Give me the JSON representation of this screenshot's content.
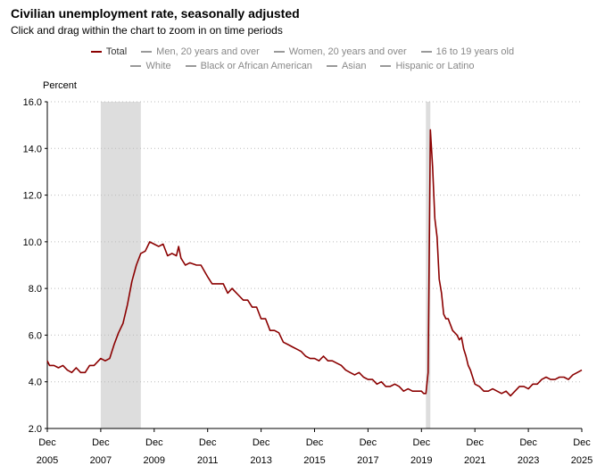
{
  "header": {
    "title": "Civilian unemployment rate, seasonally adjusted",
    "subtitle": "Click and drag within the chart to zoom in on time periods"
  },
  "legend": {
    "rows": [
      [
        {
          "label": "Total",
          "active": true
        },
        {
          "label": "Men, 20 years and over",
          "active": false
        },
        {
          "label": "Women, 20 years and over",
          "active": false
        },
        {
          "label": "16 to 19 years old",
          "active": false
        }
      ],
      [
        {
          "label": "White",
          "active": false
        },
        {
          "label": "Black or African American",
          "active": false
        },
        {
          "label": "Asian",
          "active": false
        },
        {
          "label": "Hispanic or Latino",
          "active": false
        }
      ]
    ]
  },
  "colors": {
    "series": "#8b0000",
    "recession": "#dddddd",
    "grid": "#cccccc",
    "legend_inactive": "#999999"
  },
  "chart_data": {
    "type": "line",
    "title": "Civilian unemployment rate, seasonally adjusted",
    "ylabel": "Percent",
    "ylim": [
      2.0,
      16.0
    ],
    "yticks": [
      "16.0",
      "14.0",
      "12.0",
      "10.0",
      "8.0",
      "6.0",
      "4.0",
      "2.0"
    ],
    "yticks_values": [
      16,
      14,
      12,
      10,
      8,
      6,
      4,
      2
    ],
    "xlim": [
      2005.917,
      2025.917
    ],
    "xticks": [
      {
        "month": "Dec",
        "year": "2005",
        "value": 2005.917
      },
      {
        "month": "Dec",
        "year": "2007",
        "value": 2007.917
      },
      {
        "month": "Dec",
        "year": "2009",
        "value": 2009.917
      },
      {
        "month": "Dec",
        "year": "2011",
        "value": 2011.917
      },
      {
        "month": "Dec",
        "year": "2013",
        "value": 2013.917
      },
      {
        "month": "Dec",
        "year": "2015",
        "value": 2015.917
      },
      {
        "month": "Dec",
        "year": "2017",
        "value": 2017.917
      },
      {
        "month": "Dec",
        "year": "2019",
        "value": 2019.917
      },
      {
        "month": "Dec",
        "year": "2021",
        "value": 2021.917
      },
      {
        "month": "Dec",
        "year": "2023",
        "value": 2023.917
      },
      {
        "month": "Dec",
        "year": "2025",
        "value": 2025.917
      }
    ],
    "grid": "horizontal-dotted",
    "legend_position": "top",
    "recessions": [
      {
        "start": 2007.917,
        "end": 2009.417
      },
      {
        "start": 2020.083,
        "end": 2020.25
      }
    ],
    "series": [
      {
        "name": "Total",
        "points": [
          [
            2005.917,
            4.9
          ],
          [
            2006.0,
            4.7
          ],
          [
            2006.167,
            4.7
          ],
          [
            2006.333,
            4.6
          ],
          [
            2006.5,
            4.7
          ],
          [
            2006.667,
            4.5
          ],
          [
            2006.833,
            4.4
          ],
          [
            2007.0,
            4.6
          ],
          [
            2007.167,
            4.4
          ],
          [
            2007.333,
            4.4
          ],
          [
            2007.5,
            4.7
          ],
          [
            2007.667,
            4.7
          ],
          [
            2007.917,
            5.0
          ],
          [
            2008.083,
            4.9
          ],
          [
            2008.25,
            5.0
          ],
          [
            2008.417,
            5.6
          ],
          [
            2008.583,
            6.1
          ],
          [
            2008.75,
            6.5
          ],
          [
            2008.917,
            7.3
          ],
          [
            2009.083,
            8.3
          ],
          [
            2009.25,
            9.0
          ],
          [
            2009.417,
            9.5
          ],
          [
            2009.583,
            9.6
          ],
          [
            2009.75,
            10.0
          ],
          [
            2009.917,
            9.9
          ],
          [
            2010.083,
            9.8
          ],
          [
            2010.25,
            9.9
          ],
          [
            2010.417,
            9.4
          ],
          [
            2010.583,
            9.5
          ],
          [
            2010.75,
            9.4
          ],
          [
            2010.833,
            9.8
          ],
          [
            2010.917,
            9.3
          ],
          [
            2011.083,
            9.0
          ],
          [
            2011.25,
            9.1
          ],
          [
            2011.5,
            9.0
          ],
          [
            2011.667,
            9.0
          ],
          [
            2011.917,
            8.5
          ],
          [
            2012.083,
            8.2
          ],
          [
            2012.25,
            8.2
          ],
          [
            2012.5,
            8.2
          ],
          [
            2012.667,
            7.8
          ],
          [
            2012.833,
            8.0
          ],
          [
            2012.917,
            7.9
          ],
          [
            2013.083,
            7.7
          ],
          [
            2013.25,
            7.5
          ],
          [
            2013.417,
            7.5
          ],
          [
            2013.583,
            7.2
          ],
          [
            2013.75,
            7.2
          ],
          [
            2013.917,
            6.7
          ],
          [
            2014.083,
            6.7
          ],
          [
            2014.25,
            6.2
          ],
          [
            2014.417,
            6.2
          ],
          [
            2014.583,
            6.1
          ],
          [
            2014.75,
            5.7
          ],
          [
            2014.917,
            5.6
          ],
          [
            2015.083,
            5.5
          ],
          [
            2015.25,
            5.4
          ],
          [
            2015.417,
            5.3
          ],
          [
            2015.583,
            5.1
          ],
          [
            2015.75,
            5.0
          ],
          [
            2015.917,
            5.0
          ],
          [
            2016.083,
            4.9
          ],
          [
            2016.25,
            5.1
          ],
          [
            2016.417,
            4.9
          ],
          [
            2016.583,
            4.9
          ],
          [
            2016.75,
            4.8
          ],
          [
            2016.917,
            4.7
          ],
          [
            2017.083,
            4.5
          ],
          [
            2017.25,
            4.4
          ],
          [
            2017.417,
            4.3
          ],
          [
            2017.583,
            4.4
          ],
          [
            2017.75,
            4.2
          ],
          [
            2017.917,
            4.1
          ],
          [
            2018.083,
            4.1
          ],
          [
            2018.25,
            3.9
          ],
          [
            2018.417,
            4.0
          ],
          [
            2018.583,
            3.8
          ],
          [
            2018.75,
            3.8
          ],
          [
            2018.917,
            3.9
          ],
          [
            2019.083,
            3.8
          ],
          [
            2019.25,
            3.6
          ],
          [
            2019.417,
            3.7
          ],
          [
            2019.583,
            3.6
          ],
          [
            2019.75,
            3.6
          ],
          [
            2019.917,
            3.6
          ],
          [
            2020.0,
            3.5
          ],
          [
            2020.083,
            3.5
          ],
          [
            2020.167,
            4.4
          ],
          [
            2020.25,
            14.8
          ],
          [
            2020.333,
            13.2
          ],
          [
            2020.417,
            11.0
          ],
          [
            2020.5,
            10.2
          ],
          [
            2020.583,
            8.4
          ],
          [
            2020.667,
            7.8
          ],
          [
            2020.75,
            6.9
          ],
          [
            2020.833,
            6.7
          ],
          [
            2020.917,
            6.7
          ],
          [
            2021.083,
            6.2
          ],
          [
            2021.25,
            6.0
          ],
          [
            2021.333,
            5.8
          ],
          [
            2021.417,
            5.9
          ],
          [
            2021.5,
            5.4
          ],
          [
            2021.583,
            5.1
          ],
          [
            2021.667,
            4.7
          ],
          [
            2021.75,
            4.5
          ],
          [
            2021.833,
            4.2
          ],
          [
            2021.917,
            3.9
          ],
          [
            2022.083,
            3.8
          ],
          [
            2022.25,
            3.6
          ],
          [
            2022.417,
            3.6
          ],
          [
            2022.583,
            3.7
          ],
          [
            2022.75,
            3.6
          ],
          [
            2022.917,
            3.5
          ],
          [
            2023.083,
            3.6
          ],
          [
            2023.25,
            3.4
          ],
          [
            2023.417,
            3.6
          ],
          [
            2023.583,
            3.8
          ],
          [
            2023.75,
            3.8
          ],
          [
            2023.917,
            3.7
          ],
          [
            2024.083,
            3.9
          ],
          [
            2024.25,
            3.9
          ],
          [
            2024.417,
            4.1
          ],
          [
            2024.583,
            4.2
          ],
          [
            2024.75,
            4.1
          ],
          [
            2024.917,
            4.1
          ],
          [
            2025.083,
            4.2
          ],
          [
            2025.25,
            4.2
          ],
          [
            2025.417,
            4.1
          ],
          [
            2025.583,
            4.3
          ],
          [
            2025.75,
            4.4
          ],
          [
            2025.917,
            4.5
          ]
        ]
      }
    ]
  }
}
